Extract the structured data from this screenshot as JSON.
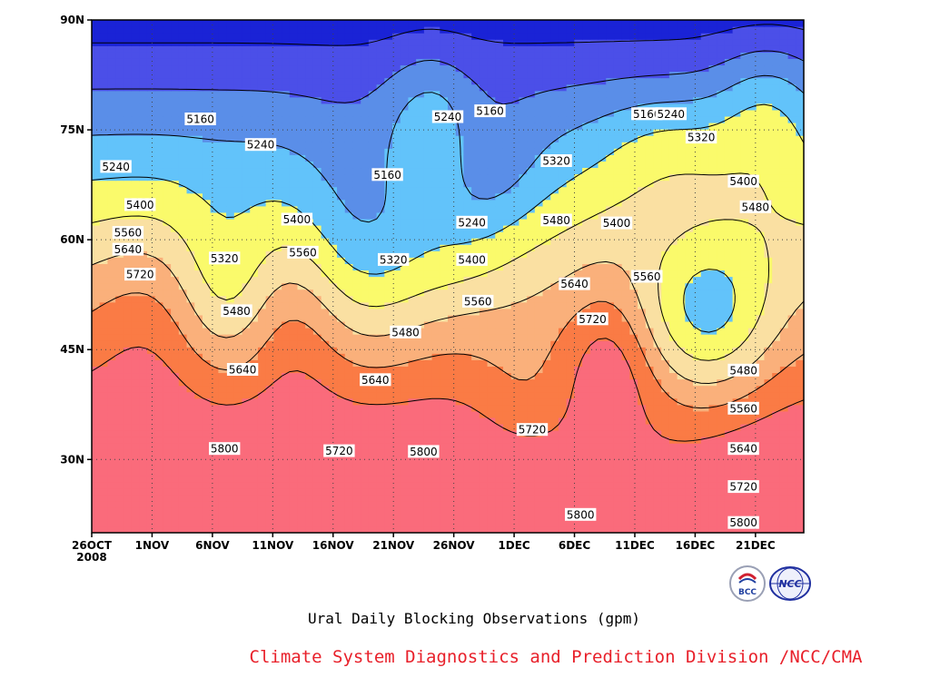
{
  "chart_data": {
    "type": "heatmap",
    "title": "Ural Daily Blocking Observations (gpm)",
    "x_ticks": [
      "26OCT\n2008",
      "1NOV",
      "6NOV",
      "11NOV",
      "16NOV",
      "21NOV",
      "26NOV",
      "1DEC",
      "6DEC",
      "11DEC",
      "16DEC",
      "21DEC"
    ],
    "y_ticks": [
      "90N",
      "75N",
      "60N",
      "45N",
      "30N"
    ],
    "x_range": [
      "2008-10-26",
      "2008-12-24"
    ],
    "y_range": [
      20,
      90
    ],
    "levels": [
      5160,
      5240,
      5320,
      5400,
      5480,
      5560,
      5640,
      5720,
      5800
    ],
    "level_colors": [
      "#101a6b",
      "#1a23d6",
      "#4b4fe8",
      "#5a8ee8",
      "#62c3fa",
      "#fafa6b",
      "#fae0a2",
      "#fab07b",
      "#fa7b45",
      "#fa6b7b",
      "#f02c45"
    ],
    "contour_labels": [
      {
        "text": "5160",
        "day": 9,
        "lat": 76.5
      },
      {
        "text": "5240",
        "day": 2,
        "lat": 70.0
      },
      {
        "text": "5240",
        "day": 14,
        "lat": 73.0
      },
      {
        "text": "5400",
        "day": 4,
        "lat": 64.8
      },
      {
        "text": "5560",
        "day": 3,
        "lat": 61.0
      },
      {
        "text": "5640",
        "day": 3,
        "lat": 58.7
      },
      {
        "text": "5720",
        "day": 4,
        "lat": 55.3
      },
      {
        "text": "5320",
        "day": 11,
        "lat": 57.5
      },
      {
        "text": "5480",
        "day": 12,
        "lat": 50.3
      },
      {
        "text": "5400",
        "day": 17,
        "lat": 62.8
      },
      {
        "text": "5560",
        "day": 17.5,
        "lat": 58.3
      },
      {
        "text": "5640",
        "day": 12.5,
        "lat": 42.3
      },
      {
        "text": "5800",
        "day": 11,
        "lat": 31.5
      },
      {
        "text": "5720",
        "day": 20.5,
        "lat": 31.2
      },
      {
        "text": "5640",
        "day": 23.5,
        "lat": 40.9
      },
      {
        "text": "5160",
        "day": 24.5,
        "lat": 68.9
      },
      {
        "text": "5320",
        "day": 25,
        "lat": 57.3
      },
      {
        "text": "5480",
        "day": 26,
        "lat": 47.4
      },
      {
        "text": "5800",
        "day": 27.5,
        "lat": 31.1
      },
      {
        "text": "5240",
        "day": 29.5,
        "lat": 76.8
      },
      {
        "text": "5160",
        "day": 33,
        "lat": 77.6
      },
      {
        "text": "5240",
        "day": 31.5,
        "lat": 62.4
      },
      {
        "text": "5400",
        "day": 31.5,
        "lat": 57.3
      },
      {
        "text": "5560",
        "day": 32,
        "lat": 51.6
      },
      {
        "text": "5720",
        "day": 36.5,
        "lat": 34.1
      },
      {
        "text": "5320",
        "day": 38.5,
        "lat": 70.8
      },
      {
        "text": "5480",
        "day": 38.5,
        "lat": 62.7
      },
      {
        "text": "5640",
        "day": 40,
        "lat": 54.0
      },
      {
        "text": "5720",
        "day": 41.5,
        "lat": 49.2
      },
      {
        "text": "5800",
        "day": 40.5,
        "lat": 22.5
      },
      {
        "text": "5400",
        "day": 43.5,
        "lat": 62.3
      },
      {
        "text": "5560",
        "day": 46,
        "lat": 55.0
      },
      {
        "text": "5160",
        "day": 46,
        "lat": 77.2
      },
      {
        "text": "5240",
        "day": 48,
        "lat": 77.2
      },
      {
        "text": "5320",
        "day": 50.5,
        "lat": 74.0
      },
      {
        "text": "5400",
        "day": 54,
        "lat": 68.0
      },
      {
        "text": "5480",
        "day": 55,
        "lat": 64.5
      },
      {
        "text": "5480",
        "day": 54,
        "lat": 42.2
      },
      {
        "text": "5560",
        "day": 54,
        "lat": 37.0
      },
      {
        "text": "5640",
        "day": 54,
        "lat": 31.5
      },
      {
        "text": "5720",
        "day": 54,
        "lat": 26.3
      },
      {
        "text": "5800",
        "day": 54,
        "lat": 21.4
      }
    ]
  },
  "footer": {
    "credit": "Climate System Diagnostics and Prediction Division /NCC/CMA",
    "logos": [
      {
        "name": "bcc-logo",
        "text": "BCC"
      },
      {
        "name": "ncc-logo",
        "text": "NCC"
      }
    ]
  }
}
